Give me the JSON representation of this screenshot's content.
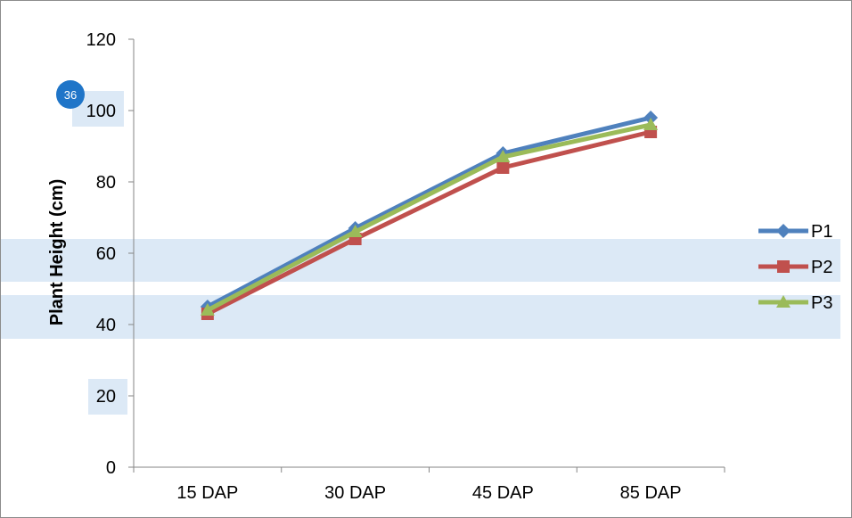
{
  "chart_data": {
    "type": "line",
    "title": "",
    "xlabel": "",
    "ylabel": "Plant Height (cm)",
    "categories": [
      "15 DAP",
      "30 DAP",
      "45 DAP",
      "85 DAP"
    ],
    "ylim": [
      0,
      120
    ],
    "yticks": [
      0,
      20,
      40,
      60,
      80,
      100,
      120
    ],
    "grid": false,
    "legend_position": "right",
    "series": [
      {
        "name": "P1",
        "values": [
          45,
          67,
          88,
          98
        ],
        "color": "#4f81bd",
        "marker": "diamond"
      },
      {
        "name": "P2",
        "values": [
          43,
          64,
          84,
          94
        ],
        "color": "#c0504d",
        "marker": "square"
      },
      {
        "name": "P3",
        "values": [
          44,
          66,
          87,
          96
        ],
        "color": "#9bbb59",
        "marker": "triangle"
      }
    ]
  },
  "badge": {
    "text": "36",
    "color": "#1f75c8"
  }
}
